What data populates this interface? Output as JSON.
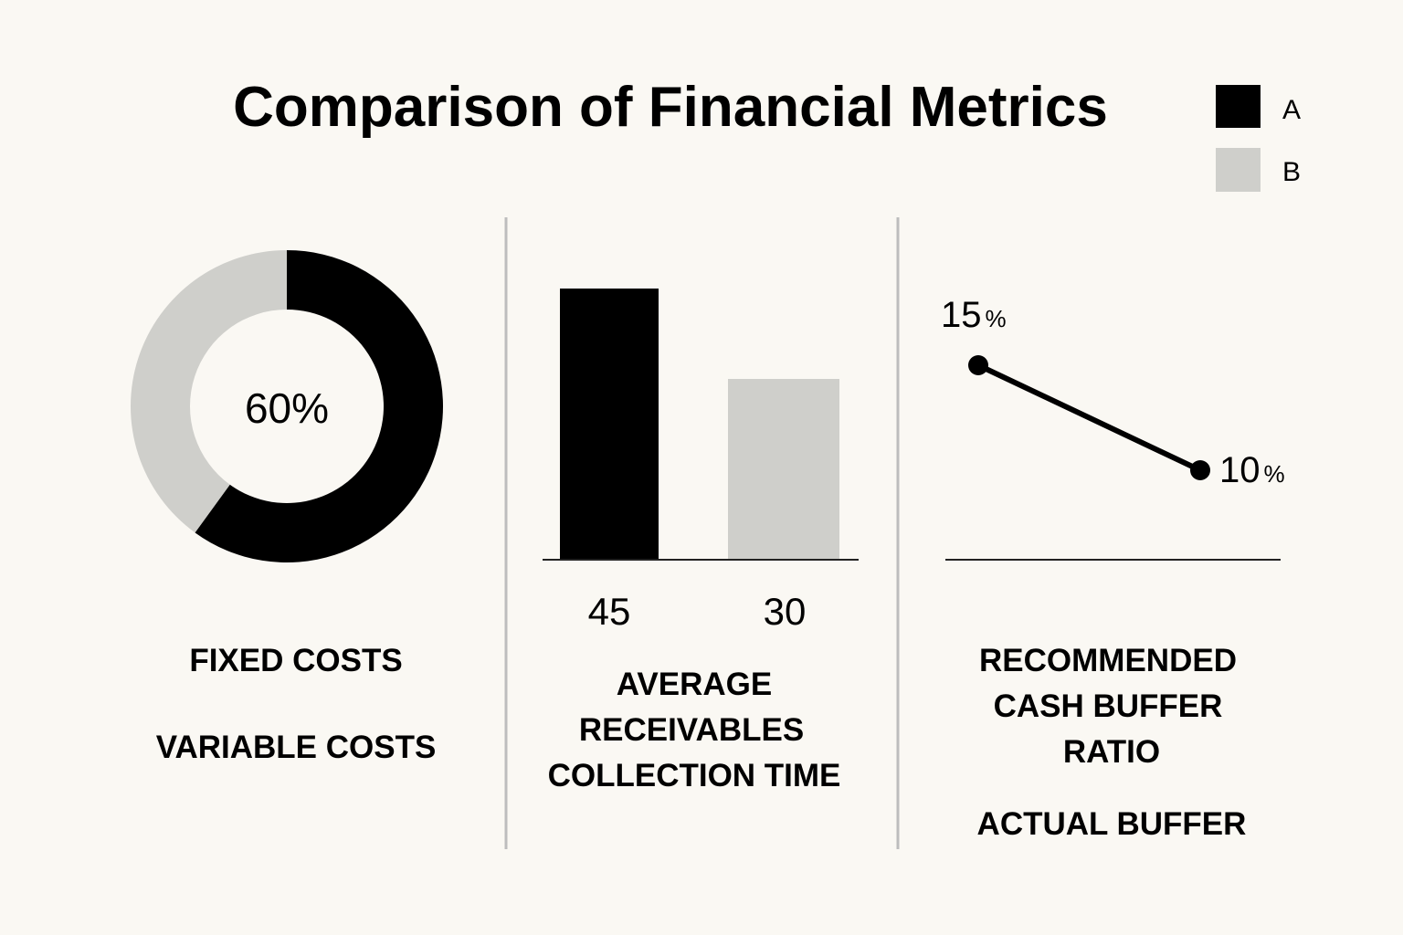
{
  "title": "Comparison of Financial Metrics",
  "legend": [
    {
      "key": "A",
      "label": "A",
      "color": "#000000"
    },
    {
      "key": "B",
      "label": "B",
      "color": "#cfcfcb"
    }
  ],
  "colors": {
    "background": "#faf8f3",
    "a": "#000000",
    "b": "#cfcfcb",
    "divider": "#bdbdbd",
    "axis": "#222222"
  },
  "chart_data": [
    {
      "type": "pie",
      "variant": "donut",
      "slices": [
        {
          "label": "FIXED COSTS",
          "value": 60,
          "color": "#000000"
        },
        {
          "label": "VARIABLE COSTS",
          "value": 40,
          "color": "#cfcfcb"
        }
      ],
      "center_label": "60%",
      "labels": [
        "FIXED COSTS",
        "VARIABLE COSTS"
      ]
    },
    {
      "type": "bar",
      "categories": [
        "A",
        "B"
      ],
      "values": [
        45,
        30
      ],
      "value_labels": [
        "45",
        "30"
      ],
      "colors": [
        "#000000",
        "#cfcfcb"
      ],
      "ylim": [
        0,
        50
      ],
      "xlabel_lines": [
        "AVERAGE",
        "RECEIVABLES",
        "COLLECTION TIME"
      ]
    },
    {
      "type": "line",
      "x": [
        "RECOMMENDED CASH BUFFER RATIO",
        "ACTUAL BUFFER"
      ],
      "y": [
        15,
        10
      ],
      "point_labels": [
        {
          "value": "15",
          "unit": "%"
        },
        {
          "value": "10",
          "unit": "%"
        }
      ],
      "ylim": [
        0,
        20
      ],
      "labels": [
        {
          "lines": [
            "RECOMMENDED",
            "CASH BUFFER",
            "RATIO"
          ]
        },
        {
          "lines": [
            "ACTUAL BUFFER"
          ]
        }
      ]
    }
  ]
}
